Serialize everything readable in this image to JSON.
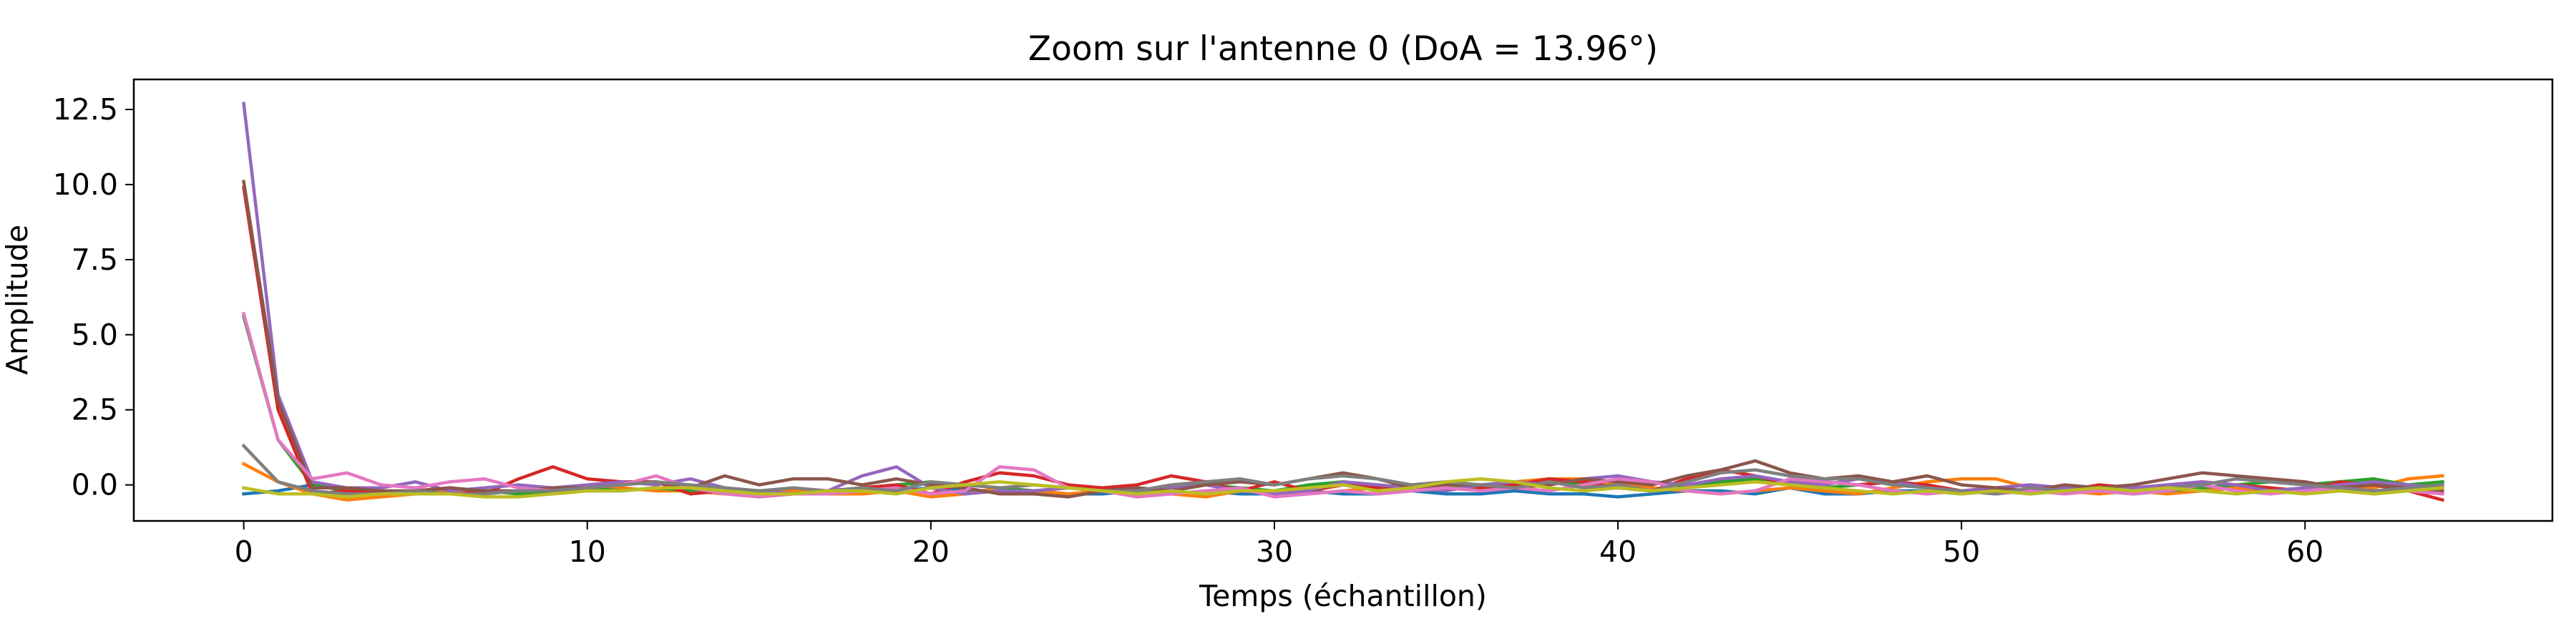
{
  "chart_data": {
    "type": "line",
    "title": "Zoom sur l'antenne 0 (DoA = 13.96°)",
    "xlabel": "Temps (échantillon)",
    "ylabel": "Amplitude",
    "xlim": [
      -3.2,
      67.2
    ],
    "ylim": [
      -1.2,
      13.5
    ],
    "xticks": [
      0,
      10,
      20,
      30,
      40,
      50,
      60
    ],
    "yticks": [
      0.0,
      2.5,
      5.0,
      7.5,
      10.0,
      12.5
    ],
    "ytick_labels": [
      "0.0",
      "2.5",
      "5.0",
      "7.5",
      "10.0",
      "12.5"
    ],
    "grid": false,
    "legend": "none",
    "x": [
      0,
      1,
      2,
      3,
      4,
      5,
      6,
      7,
      8,
      9,
      10,
      11,
      12,
      13,
      14,
      15,
      16,
      17,
      18,
      19,
      20,
      21,
      22,
      23,
      24,
      25,
      26,
      27,
      28,
      29,
      30,
      31,
      32,
      33,
      34,
      35,
      36,
      37,
      38,
      39,
      40,
      41,
      42,
      43,
      44,
      45,
      46,
      47,
      48,
      49,
      50,
      51,
      52,
      53,
      54,
      55,
      56,
      57,
      58,
      59,
      60,
      61,
      62,
      63,
      64
    ],
    "series": [
      {
        "color": "#1f77b4",
        "values": [
          -0.3,
          -0.2,
          0.0,
          -0.2,
          -0.3,
          -0.2,
          -0.2,
          -0.3,
          -0.2,
          -0.1,
          -0.2,
          -0.2,
          -0.1,
          -0.2,
          -0.3,
          -0.2,
          -0.2,
          -0.3,
          -0.2,
          -0.2,
          -0.1,
          -0.2,
          -0.2,
          -0.2,
          -0.3,
          -0.3,
          -0.2,
          -0.3,
          -0.2,
          -0.3,
          -0.3,
          -0.2,
          -0.3,
          -0.3,
          -0.2,
          -0.3,
          -0.3,
          -0.2,
          -0.3,
          -0.3,
          -0.4,
          -0.3,
          -0.2,
          -0.2,
          -0.3,
          -0.1,
          -0.3,
          -0.3,
          -0.2,
          -0.2,
          -0.3,
          -0.2,
          -0.3,
          -0.2,
          -0.2,
          -0.3,
          -0.2,
          -0.2,
          -0.1,
          -0.2,
          -0.1,
          0.1,
          0.1,
          0.0,
          0.1
        ]
      },
      {
        "color": "#ff7f0e",
        "values": [
          0.7,
          0.1,
          -0.3,
          -0.5,
          -0.4,
          -0.3,
          -0.2,
          -0.3,
          -0.2,
          -0.3,
          -0.2,
          -0.1,
          -0.2,
          -0.2,
          -0.3,
          -0.2,
          -0.2,
          -0.3,
          -0.3,
          -0.2,
          -0.4,
          -0.3,
          -0.1,
          -0.2,
          -0.3,
          -0.2,
          -0.2,
          -0.3,
          -0.4,
          -0.2,
          -0.2,
          -0.3,
          -0.2,
          -0.1,
          -0.2,
          -0.1,
          -0.1,
          0.1,
          0.2,
          0.2,
          0.0,
          -0.1,
          -0.2,
          -0.3,
          -0.2,
          -0.1,
          -0.2,
          -0.3,
          -0.1,
          0.1,
          0.2,
          0.2,
          -0.1,
          -0.2,
          -0.3,
          -0.2,
          -0.3,
          -0.2,
          -0.1,
          -0.2,
          -0.3,
          -0.2,
          -0.1,
          0.2,
          0.3
        ]
      },
      {
        "color": "#2ca02c",
        "values": [
          5.6,
          1.5,
          0.0,
          -0.2,
          -0.3,
          -0.2,
          -0.1,
          -0.2,
          -0.3,
          -0.2,
          -0.1,
          -0.2,
          -0.1,
          -0.2,
          -0.1,
          -0.2,
          -0.3,
          -0.2,
          -0.1,
          0.0,
          0.1,
          0.0,
          -0.1,
          -0.2,
          -0.1,
          -0.2,
          -0.1,
          -0.2,
          0.0,
          -0.1,
          -0.2,
          0.0,
          0.1,
          0.0,
          -0.1,
          0.0,
          -0.1,
          0.0,
          0.1,
          0.0,
          -0.1,
          -0.2,
          0.0,
          0.1,
          0.2,
          0.0,
          -0.1,
          0.0,
          0.1,
          -0.1,
          -0.2,
          -0.3,
          -0.2,
          -0.1,
          -0.2,
          -0.3,
          -0.2,
          -0.1,
          0.0,
          0.1,
          0.0,
          0.1,
          0.2,
          0.0,
          0.1
        ]
      },
      {
        "color": "#d62728",
        "values": [
          9.9,
          2.5,
          -0.3,
          -0.2,
          -0.3,
          -0.2,
          -0.1,
          -0.3,
          0.2,
          0.6,
          0.2,
          0.1,
          0.1,
          -0.3,
          -0.2,
          -0.4,
          -0.3,
          -0.2,
          -0.1,
          0.0,
          -0.3,
          0.1,
          0.4,
          0.3,
          0.0,
          -0.1,
          0.0,
          0.3,
          0.1,
          -0.2,
          0.1,
          -0.2,
          0.0,
          -0.1,
          0.0,
          0.1,
          -0.1,
          0.0,
          0.2,
          0.1,
          -0.1,
          -0.2,
          0.2,
          0.5,
          0.3,
          0.0,
          0.1,
          0.0,
          0.1,
          0.0,
          -0.2,
          -0.1,
          0.0,
          -0.2,
          0.0,
          -0.1,
          0.0,
          0.1,
          0.0,
          -0.1,
          -0.2,
          0.1,
          0.0,
          -0.2,
          -0.5
        ]
      },
      {
        "color": "#9467bd",
        "values": [
          12.7,
          3.0,
          0.1,
          -0.1,
          -0.1,
          0.1,
          -0.2,
          -0.1,
          0.0,
          -0.1,
          0.0,
          0.1,
          0.0,
          0.2,
          -0.1,
          -0.2,
          -0.3,
          -0.2,
          0.3,
          0.6,
          -0.1,
          -0.3,
          -0.2,
          -0.2,
          -0.1,
          -0.2,
          -0.3,
          -0.1,
          0.0,
          -0.2,
          -0.3,
          -0.2,
          0.1,
          0.0,
          -0.1,
          -0.2,
          0.0,
          0.1,
          0.0,
          0.2,
          0.3,
          0.1,
          0.0,
          0.2,
          0.3,
          0.1,
          0.0,
          0.2,
          0.1,
          -0.1,
          -0.2,
          -0.1,
          0.0,
          -0.1,
          -0.2,
          -0.1,
          0.0,
          0.1,
          0.0,
          -0.2,
          -0.1,
          0.0,
          0.1,
          0.0,
          -0.1
        ]
      },
      {
        "color": "#8c564b",
        "values": [
          10.1,
          2.8,
          -0.1,
          -0.1,
          -0.2,
          -0.2,
          -0.1,
          -0.2,
          -0.2,
          -0.1,
          -0.1,
          0.0,
          0.1,
          -0.1,
          0.3,
          0.0,
          0.2,
          0.2,
          0.0,
          0.2,
          0.0,
          -0.1,
          -0.3,
          -0.3,
          -0.4,
          -0.2,
          -0.1,
          -0.2,
          0.0,
          0.1,
          0.0,
          0.2,
          0.4,
          0.2,
          -0.1,
          0.0,
          0.0,
          -0.1,
          0.0,
          0.2,
          0.1,
          0.0,
          0.3,
          0.5,
          0.8,
          0.4,
          0.2,
          0.3,
          0.1,
          0.3,
          0.0,
          -0.1,
          -0.2,
          0.0,
          -0.1,
          0.0,
          0.2,
          0.4,
          0.3,
          0.2,
          0.1,
          -0.1,
          0.0,
          -0.1,
          -0.2
        ]
      },
      {
        "color": "#e377c2",
        "values": [
          5.7,
          1.5,
          0.2,
          0.4,
          0.0,
          -0.1,
          0.1,
          0.2,
          -0.1,
          -0.2,
          -0.1,
          0.0,
          0.3,
          -0.1,
          -0.3,
          -0.4,
          -0.3,
          -0.3,
          -0.2,
          -0.1,
          -0.3,
          -0.2,
          0.6,
          0.5,
          -0.1,
          -0.2,
          -0.4,
          -0.3,
          -0.2,
          -0.1,
          -0.4,
          -0.3,
          -0.2,
          -0.3,
          -0.2,
          -0.1,
          -0.2,
          -0.1,
          -0.2,
          0.0,
          0.2,
          0.1,
          -0.2,
          -0.3,
          -0.2,
          0.2,
          0.1,
          0.0,
          -0.2,
          -0.3,
          -0.2,
          -0.3,
          -0.2,
          -0.3,
          -0.2,
          -0.3,
          -0.2,
          0.0,
          -0.2,
          -0.3,
          -0.2,
          -0.1,
          -0.3,
          -0.2,
          -0.3
        ]
      },
      {
        "color": "#7f7f7f",
        "values": [
          1.3,
          0.1,
          -0.2,
          -0.3,
          -0.3,
          -0.2,
          -0.3,
          -0.3,
          -0.2,
          -0.2,
          -0.1,
          0.0,
          0.1,
          0.0,
          -0.1,
          -0.2,
          -0.1,
          -0.2,
          -0.1,
          -0.2,
          0.1,
          0.0,
          -0.1,
          0.0,
          -0.1,
          -0.2,
          -0.2,
          0.0,
          0.1,
          0.2,
          0.0,
          0.2,
          0.3,
          0.2,
          0.0,
          0.1,
          0.0,
          -0.1,
          0.1,
          -0.1,
          0.0,
          -0.2,
          0.1,
          0.4,
          0.5,
          0.3,
          0.2,
          0.2,
          0.0,
          -0.1,
          -0.2,
          -0.3,
          -0.1,
          -0.2,
          -0.1,
          -0.2,
          -0.1,
          0.0,
          0.2,
          0.1,
          0.0,
          -0.1,
          -0.2,
          -0.1,
          0.0
        ]
      },
      {
        "color": "#bcbd22",
        "values": [
          -0.1,
          -0.3,
          -0.3,
          -0.4,
          -0.3,
          -0.3,
          -0.3,
          -0.4,
          -0.4,
          -0.3,
          -0.2,
          -0.2,
          -0.1,
          -0.1,
          -0.2,
          -0.3,
          -0.3,
          -0.2,
          -0.2,
          -0.3,
          -0.1,
          0.0,
          0.1,
          0.0,
          -0.1,
          -0.2,
          -0.3,
          -0.2,
          -0.3,
          -0.2,
          -0.2,
          -0.1,
          0.0,
          -0.2,
          -0.1,
          0.1,
          0.2,
          0.1,
          -0.1,
          -0.2,
          -0.1,
          -0.2,
          -0.1,
          0.0,
          0.1,
          0.0,
          -0.1,
          -0.2,
          -0.3,
          -0.2,
          -0.3,
          -0.2,
          -0.3,
          -0.2,
          -0.1,
          -0.2,
          -0.1,
          -0.2,
          -0.3,
          -0.2,
          -0.3,
          -0.2,
          -0.3,
          -0.2,
          -0.1
        ]
      }
    ]
  }
}
